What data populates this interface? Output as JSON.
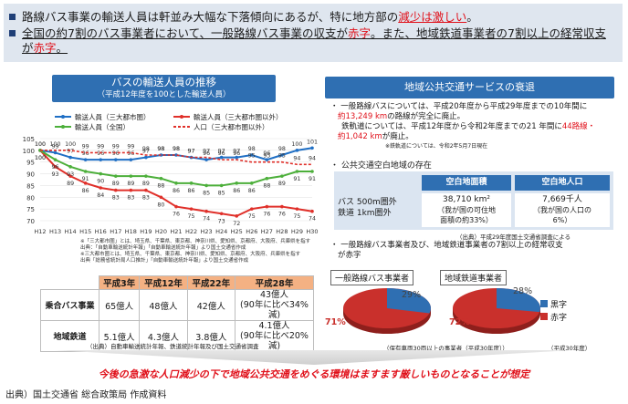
{
  "summary": {
    "line1_a": "路線バス事業の輸送人員は軒並み大幅な下落傾向にあるが、特に地方部の",
    "line1_b": "減少は激しい",
    "line1_c": "。",
    "line2_a": "全国の約7割のバス事業者において、一般路線バス事業の収支が",
    "line2_b": "赤字",
    "line2_c": "。また、地域鉄道事業者の7割以上の経常収支",
    "line3_a": "が",
    "line3_b": "赤字",
    "line3_c": "。"
  },
  "left_panel": {
    "title": "バスの輸送人員の推移",
    "subtitle": "（平成12年度を100とした輸送人員）",
    "legend": [
      {
        "label": "輸送人員（三大都市圏）",
        "color": "#1f6fc5",
        "dash": false
      },
      {
        "label": "輸送人員（三大都市圏以外）",
        "color": "#e0302a",
        "dash": false
      },
      {
        "label": "輸送人員（全国）",
        "color": "#4caf3a",
        "dash": false
      },
      {
        "label": "人口（三大都市圏以外）",
        "color": "#e0302a",
        "dash": true
      }
    ],
    "notes": [
      "※「三大都市圏」とは、埼玉県、千葉県、東京都、神奈川県、愛知県、京都府、大阪府、兵庫県を指す",
      "出典：「自動車輸送統計年報」「自動車輸送統計年報」より国土交通省作成",
      "※三大都市圏とは、埼玉県、千葉県、東京都、神奈川県、愛知県、京都府、大阪府、兵庫県を指す",
      "出典「総務省統計局人口推計」「自動車輸送統計年報」より国土交通省作成"
    ],
    "table": {
      "headers": [
        "",
        "平成3年",
        "平成12年",
        "平成22年",
        "平成28年"
      ],
      "rows": [
        [
          "乗合バス事業",
          "65億人",
          "48億人",
          "42億人",
          "43億人\n(90年に比べ34%減)"
        ],
        [
          "地域鉄道",
          "5.1億人",
          "4.3億人",
          "3.8億人",
          "4.1億人\n(90年に比べ20%減)"
        ]
      ]
    },
    "source": "（出典）自動車輸送統計年報、鉄道統計年報及び国土交通省調査"
  },
  "chart_data": {
    "type": "line",
    "x": [
      "H12",
      "H13",
      "H14",
      "H15",
      "H16",
      "H17",
      "H18",
      "H19",
      "H20",
      "H21",
      "H22",
      "H23",
      "H24",
      "H25",
      "H26",
      "H27",
      "H28",
      "H29",
      "H30"
    ],
    "ylim": [
      70,
      105
    ],
    "yticks": [
      70,
      75,
      80,
      85,
      90,
      95,
      100,
      105
    ],
    "series": [
      {
        "name": "輸送人員（三大都市圏）",
        "color": "#1f6fc5",
        "dash": false,
        "values": [
          100,
          99,
          97,
          96,
          96,
          96,
          96,
          97,
          98,
          98,
          97,
          96,
          97,
          97,
          98,
          96,
          98,
          100,
          101
        ]
      },
      {
        "name": "輸送人員（三大都市圏以外）",
        "color": "#e0302a",
        "dash": false,
        "values": [
          100,
          93,
          89,
          86,
          84,
          83,
          83,
          83,
          80,
          76,
          75,
          74,
          73,
          72,
          75,
          76,
          76,
          75,
          74
        ]
      },
      {
        "name": "輸送人員（全国）",
        "color": "#4caf3a",
        "dash": false,
        "values": [
          100,
          96,
          93,
          91,
          90,
          89,
          89,
          89,
          88,
          86,
          86,
          85,
          85,
          86,
          86,
          88,
          89,
          91,
          91
        ]
      },
      {
        "name": "人口（三大都市圏以外）",
        "color": "#e0302a",
        "dash": true,
        "values": [
          100,
          100,
          100,
          99,
          99,
          99,
          99,
          98,
          98,
          98,
          97,
          97,
          96,
          96,
          95,
          95,
          95,
          94,
          94
        ]
      }
    ],
    "labels": [
      [
        100,
        99,
        97,
        96,
        96,
        96,
        96,
        97,
        98,
        98,
        97,
        96,
        97,
        97,
        98,
        96,
        98,
        100,
        101
      ],
      [
        100,
        93,
        89,
        86,
        84,
        83,
        83,
        83,
        80,
        76,
        75,
        74,
        73,
        72,
        75,
        76,
        76,
        75,
        74
      ],
      [
        100,
        96,
        93,
        91,
        90,
        89,
        89,
        89,
        88,
        86,
        86,
        85,
        85,
        86,
        86,
        88,
        89,
        91,
        91
      ],
      [
        100,
        100,
        100,
        99,
        99,
        99,
        99,
        98,
        98,
        98,
        97,
        97,
        96,
        96,
        95,
        95,
        95,
        94,
        94
      ]
    ]
  },
  "right_panel": {
    "title": "地域公共交通サービスの衰退",
    "bullet1_a": "一般路線バスについては、平成20年度から平成29年度までの10年間に",
    "bullet1_b": "約13,249 km",
    "bullet1_c": "の路線が完全に廃止。",
    "bullet1_d": "鉄軌道については、平成12年度から令和2年度までの21 年間に",
    "bullet1_e": "44路線・",
    "bullet1_f": "約1,042 km",
    "bullet1_g": "が廃止。",
    "bullet1_note": "※鉄軌道については、令和2年5月7日現在",
    "bullet2": "公共交通空白地域の存在",
    "gap_table": {
      "headers": [
        "空白地面積",
        "空白地人口"
      ],
      "row_label_1": "バス 500m圏外",
      "row_label_2": "鉄道  1km圏外",
      "area_1": "38,710 km²",
      "area_2": "（我が国の可住地",
      "area_3": "面積の約33%）",
      "pop_1": "7,669千人",
      "pop_2": "（我が国の人口の",
      "pop_3": "6%）"
    },
    "gap_source": "（出典）平成29年度国土交通省調査による",
    "bullet3_a": "一般路線バス事業者及び、地域鉄道事業者の7割以上の経常収支",
    "bullet3_b": "が赤字",
    "pie1": {
      "label": "一般路線バス事業者",
      "black_pct": 29,
      "red_pct": 71,
      "black_text": "29%",
      "red_text": "71%"
    },
    "pie2": {
      "label": "地域鉄道事業者",
      "black_pct": 28,
      "red_pct": 72,
      "black_text": "28%",
      "red_text": "72%"
    },
    "pie_legend": [
      {
        "label": "黒字",
        "color": "#2f6fb2"
      },
      {
        "label": "赤字",
        "color": "#c9302c"
      }
    ],
    "pie_note_1": "（保有車両30両以上の事業者（平成30年度））",
    "pie_note_2": "（平成30年度）"
  },
  "conclusion": "今後の急激な人口減少の下で地域公共交通をめぐる環境はますます厳しいものとなることが想定",
  "footer": "出典）国土交通省 総合政策局 作成資料",
  "colors": {
    "accent_blue": "#2f6fb2",
    "summary_bg": "#dfe6ef",
    "red": "#e0101a"
  }
}
